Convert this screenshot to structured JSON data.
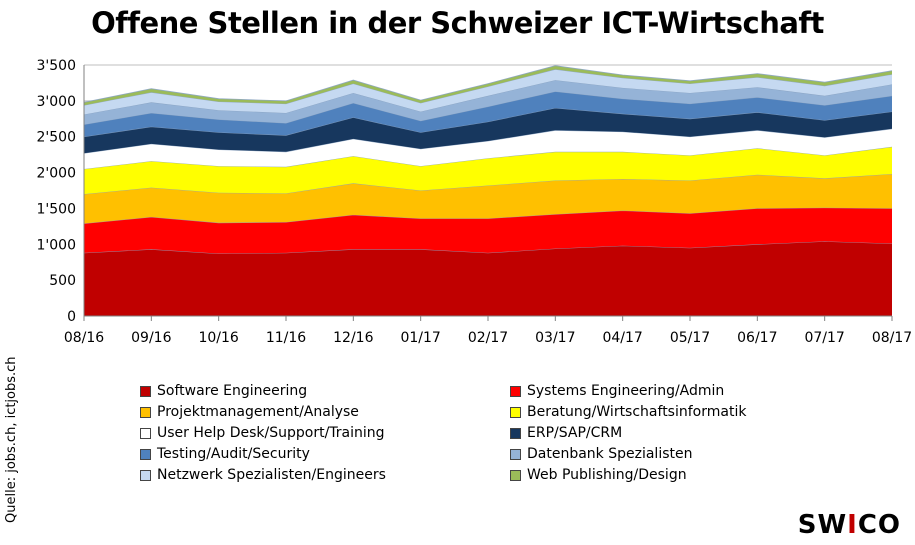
{
  "chart_data": {
    "type": "area",
    "stacked": true,
    "title": "Offene Stellen in der Schweizer ICT-Wirtschaft",
    "xlabel": "",
    "ylabel": "",
    "x": [
      "08/16",
      "09/16",
      "10/16",
      "11/16",
      "12/16",
      "01/17",
      "02/17",
      "03/17",
      "04/17",
      "05/17",
      "06/17",
      "07/17",
      "08/17"
    ],
    "ylim": [
      0,
      3500
    ],
    "yticks": [
      0,
      500,
      1000,
      1500,
      2000,
      2500,
      3000,
      3500
    ],
    "ytick_labels": [
      "0",
      "500",
      "1'000",
      "1'500",
      "2'000",
      "2'500",
      "3'000",
      "3'500"
    ],
    "grid": "horizontal",
    "legend_position": "bottom",
    "series": [
      {
        "name": "Software Engineering",
        "color": "#c00000",
        "values": [
          880,
          930,
          870,
          880,
          930,
          930,
          880,
          940,
          980,
          950,
          1000,
          1040,
          1010
        ]
      },
      {
        "name": "Systems Engineering/Admin",
        "color": "#ff0000",
        "values": [
          410,
          450,
          430,
          430,
          480,
          430,
          480,
          480,
          490,
          480,
          500,
          470,
          490
        ]
      },
      {
        "name": "Projektmanagement/Analyse",
        "color": "#ffc000",
        "values": [
          410,
          410,
          420,
          400,
          440,
          390,
          460,
          470,
          440,
          460,
          470,
          410,
          480
        ]
      },
      {
        "name": "Beratung/Wirtschaftsinformatik",
        "color": "#ffff00",
        "values": [
          350,
          370,
          370,
          370,
          380,
          340,
          380,
          400,
          380,
          350,
          370,
          320,
          380
        ]
      },
      {
        "name": "User Help Desk/Support/Training",
        "color": "#ffffff",
        "values": [
          220,
          240,
          230,
          210,
          240,
          240,
          240,
          300,
          280,
          260,
          250,
          250,
          250
        ]
      },
      {
        "name": "ERP/SAP/CRM",
        "color": "#17375e",
        "values": [
          230,
          240,
          240,
          230,
          300,
          230,
          270,
          310,
          250,
          250,
          250,
          240,
          240
        ]
      },
      {
        "name": "Testing/Audit/Security",
        "color": "#4f81bd",
        "values": [
          170,
          190,
          180,
          170,
          200,
          160,
          210,
          230,
          210,
          210,
          210,
          210,
          220
        ]
      },
      {
        "name": "Datenbank Spezialisten",
        "color": "#95b3d7",
        "values": [
          140,
          150,
          130,
          140,
          140,
          130,
          150,
          160,
          150,
          150,
          140,
          130,
          160
        ]
      },
      {
        "name": "Netzwerk Spezialisten/Engineers",
        "color": "#c5d9f1",
        "values": [
          130,
          140,
          120,
          130,
          130,
          120,
          130,
          150,
          140,
          130,
          140,
          140,
          140
        ]
      },
      {
        "name": "Web Publishing/Design",
        "color": "#9bbb59",
        "values": [
          40,
          50,
          40,
          40,
          50,
          40,
          40,
          50,
          40,
          40,
          50,
          50,
          50
        ]
      }
    ]
  },
  "source_note": "Quelle: jobs.ch, ictjobs.ch",
  "brand": {
    "prefix": "SW",
    "accent": "I",
    "suffix": "CO"
  }
}
